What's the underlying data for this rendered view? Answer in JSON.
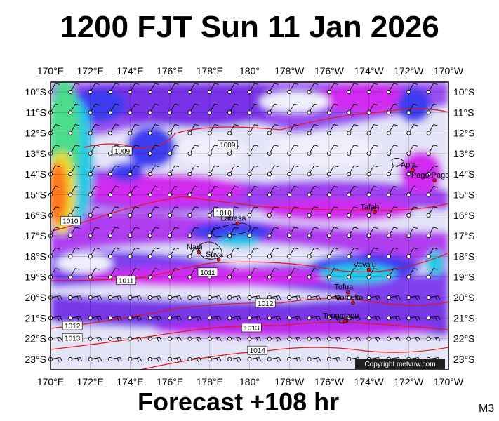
{
  "title": "1200 FJT Sun 11 Jan 2026",
  "footer": "Forecast +108 hr",
  "model": "M3",
  "copyright": "Copyright metvuw.com",
  "lon_labels": [
    "170°E",
    "172°E",
    "174°E",
    "176°E",
    "178°E",
    "180°",
    "178°W",
    "176°W",
    "174°W",
    "172°W",
    "170°W"
  ],
  "lat_labels": [
    "10°S",
    "11°S",
    "12°S",
    "13°S",
    "14°S",
    "15°S",
    "16°S",
    "17°S",
    "18°S",
    "19°S",
    "20°S",
    "21°S",
    "22°S",
    "23°S"
  ],
  "places": [
    {
      "name": "Apia",
      "lon": -171.8,
      "lat": -13.8
    },
    {
      "name": "Pago Pago",
      "lon": -170.7,
      "lat": -14.3
    },
    {
      "name": "Tafahi",
      "lon": -173.7,
      "lat": -15.85
    },
    {
      "name": "Labasa",
      "lon": 179.4,
      "lat": -16.4
    },
    {
      "name": "Nadi",
      "lon": 177.45,
      "lat": -17.8
    },
    {
      "name": "Suva",
      "lon": 178.45,
      "lat": -18.15
    },
    {
      "name": "Vava'u",
      "lon": -174.0,
      "lat": -18.65
    },
    {
      "name": "Tofua",
      "lon": -175.05,
      "lat": -19.75
    },
    {
      "name": "Nomuka",
      "lon": -174.8,
      "lat": -20.25
    },
    {
      "name": "Tongatapu",
      "lon": -175.2,
      "lat": -21.15
    }
  ],
  "isobars": [
    {
      "label": "1009",
      "lon": 173.6,
      "lat": -12.9
    },
    {
      "label": "1009",
      "lon": 178.9,
      "lat": -12.6
    },
    {
      "label": "1010",
      "lon": 171.0,
      "lat": -16.3
    },
    {
      "label": "1010",
      "lon": 178.7,
      "lat": -15.9
    },
    {
      "label": "1011",
      "lon": 173.8,
      "lat": -19.2
    },
    {
      "label": "1011",
      "lon": 177.9,
      "lat": -18.8
    },
    {
      "label": "1012",
      "lon": 171.1,
      "lat": -21.4
    },
    {
      "label": "1012",
      "lon": -179.2,
      "lat": -20.3
    },
    {
      "label": "1013",
      "lon": 171.1,
      "lat": -22.0
    },
    {
      "label": "1013",
      "lon": -179.9,
      "lat": -21.5
    },
    {
      "label": "1014",
      "lon": -179.6,
      "lat": -22.6
    }
  ],
  "colors": {
    "precip_light": "#e4e4f8",
    "precip_violet": "#8a3cf0",
    "precip_magenta": "#d22cf0",
    "precip_blue": "#3c3cf0",
    "precip_cyan": "#28c8e6",
    "precip_green": "#4cdc8c",
    "precip_yellow": "#e6dc32",
    "precip_orange": "#ff7a1e",
    "isobar": "#e8141a"
  }
}
